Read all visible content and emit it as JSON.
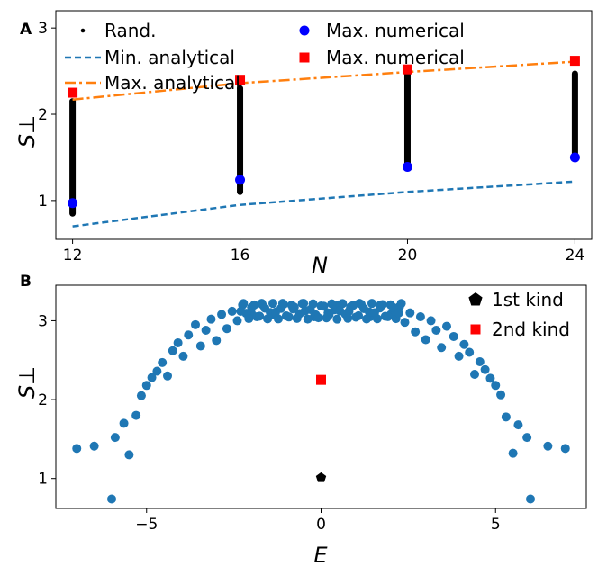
{
  "figure": {
    "background": "#ffffff"
  },
  "chart_data": [
    {
      "panel": "A",
      "type": "scatter",
      "title": "",
      "xlabel": "N",
      "ylabel": "S⊥",
      "xlim": [
        11.6,
        24.4
      ],
      "ylim": [
        0.55,
        3.2
      ],
      "xticks": [
        12,
        16,
        20,
        24
      ],
      "yticks": [
        1,
        2,
        3
      ],
      "grid": false,
      "legend_placement": "top-left, two columns",
      "random_distribution": [
        {
          "x": 12,
          "min": 0.85,
          "max": 2.15
        },
        {
          "x": 16,
          "min": 1.1,
          "max": 2.3
        },
        {
          "x": 20,
          "min": 1.4,
          "max": 2.47
        },
        {
          "x": 24,
          "min": 1.53,
          "max": 2.47
        }
      ],
      "series": [
        {
          "name": "Rand.",
          "kind": "points",
          "marker": "dot",
          "color": "#000000",
          "x": [
            12,
            16,
            20,
            24
          ],
          "y": [
            0.9,
            1.12,
            1.42,
            1.55
          ]
        },
        {
          "name": "Min. analytical",
          "kind": "line",
          "style": "dashed",
          "color": "#1f77b4",
          "x": [
            12,
            16,
            20,
            24
          ],
          "y": [
            0.7,
            0.95,
            1.1,
            1.22
          ]
        },
        {
          "name": "Max. analytical",
          "kind": "line",
          "style": "dashdot",
          "color": "#ff7f0e",
          "x": [
            12,
            16,
            20,
            24
          ],
          "y": [
            2.17,
            2.36,
            2.49,
            2.61
          ]
        },
        {
          "name": "Max. numerical",
          "kind": "points",
          "marker": "circle",
          "color": "#0000ff",
          "x": [
            12,
            16,
            20,
            24
          ],
          "y": [
            0.97,
            1.24,
            1.39,
            1.5
          ]
        },
        {
          "name": "Max. numerical",
          "kind": "points",
          "marker": "square",
          "color": "#ff0000",
          "x": [
            12,
            16,
            20,
            24
          ],
          "y": [
            2.25,
            2.4,
            2.52,
            2.62
          ]
        }
      ]
    },
    {
      "panel": "B",
      "type": "scatter",
      "title": "",
      "xlabel": "E",
      "ylabel": "S⊥",
      "xlim": [
        -7.6,
        7.6
      ],
      "ylim": [
        0.62,
        3.45
      ],
      "xticks": [
        -5,
        0,
        5
      ],
      "yticks": [
        1,
        2,
        3
      ],
      "grid": false,
      "legend_placement": "top-right",
      "point_color": "#1f77b4",
      "spectrum_points": [
        [
          -7.0,
          1.38
        ],
        [
          -6.5,
          1.41
        ],
        [
          -6.0,
          0.74
        ],
        [
          -5.9,
          1.52
        ],
        [
          -5.65,
          1.7
        ],
        [
          -5.5,
          1.3
        ],
        [
          -5.3,
          1.8
        ],
        [
          -5.15,
          2.05
        ],
        [
          -5.0,
          2.18
        ],
        [
          -4.85,
          2.28
        ],
        [
          -4.7,
          2.36
        ],
        [
          -4.55,
          2.47
        ],
        [
          -4.4,
          2.3
        ],
        [
          -4.25,
          2.62
        ],
        [
          -4.1,
          2.72
        ],
        [
          -3.95,
          2.55
        ],
        [
          -3.8,
          2.82
        ],
        [
          -3.6,
          2.95
        ],
        [
          -3.45,
          2.68
        ],
        [
          -3.3,
          2.88
        ],
        [
          -3.15,
          3.02
        ],
        [
          -3.0,
          2.75
        ],
        [
          -2.85,
          3.08
        ],
        [
          -2.7,
          2.9
        ],
        [
          -2.55,
          3.12
        ],
        [
          -2.4,
          3.0
        ],
        [
          -2.25,
          3.2
        ],
        [
          -2.0,
          3.1
        ],
        [
          -1.7,
          3.22
        ],
        [
          -1.4,
          3.08
        ],
        [
          -1.1,
          3.22
        ],
        [
          -0.8,
          3.15
        ],
        [
          -0.5,
          3.22
        ],
        [
          -0.2,
          3.05
        ],
        [
          0.2,
          3.1
        ],
        [
          0.5,
          3.2
        ],
        [
          0.8,
          3.12
        ],
        [
          1.1,
          3.22
        ],
        [
          1.4,
          3.05
        ],
        [
          1.7,
          3.2
        ],
        [
          2.0,
          3.08
        ],
        [
          2.25,
          3.18
        ],
        [
          2.4,
          2.98
        ],
        [
          2.55,
          3.1
        ],
        [
          2.7,
          2.86
        ],
        [
          2.85,
          3.05
        ],
        [
          3.0,
          2.76
        ],
        [
          3.15,
          3.0
        ],
        [
          3.3,
          2.88
        ],
        [
          3.45,
          2.66
        ],
        [
          3.6,
          2.93
        ],
        [
          3.8,
          2.8
        ],
        [
          3.95,
          2.55
        ],
        [
          4.1,
          2.7
        ],
        [
          4.25,
          2.6
        ],
        [
          4.4,
          2.32
        ],
        [
          4.55,
          2.48
        ],
        [
          4.7,
          2.38
        ],
        [
          4.85,
          2.27
        ],
        [
          5.0,
          2.18
        ],
        [
          5.15,
          2.06
        ],
        [
          5.3,
          1.78
        ],
        [
          5.5,
          1.32
        ],
        [
          5.65,
          1.68
        ],
        [
          5.9,
          1.52
        ],
        [
          6.0,
          0.74
        ],
        [
          6.5,
          1.41
        ],
        [
          7.0,
          1.38
        ]
      ],
      "series": [
        {
          "name": "1st kind",
          "marker": "pentagon",
          "color": "#000000",
          "x": [
            0
          ],
          "y": [
            1.01
          ]
        },
        {
          "name": "2nd kind",
          "marker": "square",
          "color": "#ff0000",
          "x": [
            0
          ],
          "y": [
            2.25
          ]
        }
      ]
    }
  ]
}
